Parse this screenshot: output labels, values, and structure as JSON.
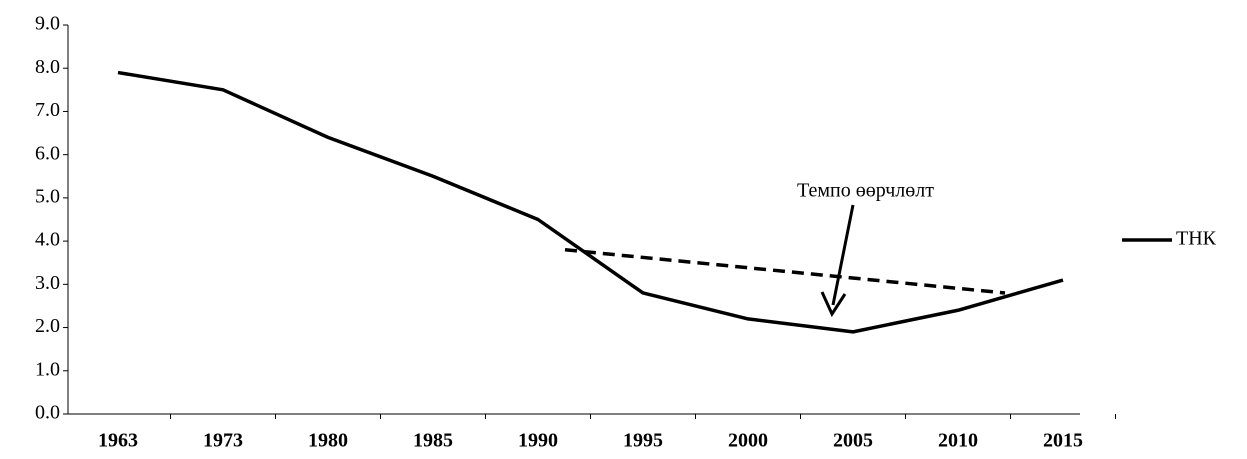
{
  "chart_data": {
    "type": "line",
    "categories": [
      "1963",
      "1973",
      "1980",
      "1985",
      "1990",
      "1995",
      "2000",
      "2005",
      "2010",
      "2015"
    ],
    "series": [
      {
        "name": "ТНК",
        "color": "#000000",
        "values": [
          7.9,
          7.5,
          6.4,
          5.5,
          4.5,
          2.8,
          2.2,
          1.9,
          2.4,
          3.1
        ]
      }
    ],
    "ylim": [
      0,
      9
    ],
    "yticks": [
      {
        "value": 0,
        "label": "0.0"
      },
      {
        "value": 1,
        "label": "1.0"
      },
      {
        "value": 2,
        "label": "2.0"
      },
      {
        "value": 3,
        "label": "3.0"
      },
      {
        "value": 4,
        "label": "4.0"
      },
      {
        "value": 5,
        "label": "5.0"
      },
      {
        "value": 6,
        "label": "6.0"
      },
      {
        "value": 7,
        "label": "7.0"
      },
      {
        "value": 8,
        "label": "8.0"
      },
      {
        "value": 9,
        "label": "9.0"
      }
    ],
    "trend_line": {
      "values": [
        3.8,
        2.8
      ]
    },
    "annotation": "Темпо өөрчлөлт",
    "legend": "right"
  }
}
